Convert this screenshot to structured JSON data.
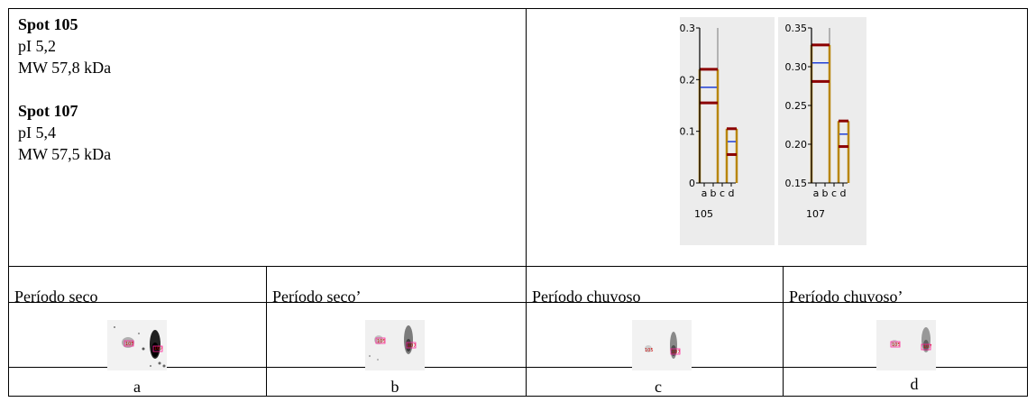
{
  "info": {
    "spot1": {
      "label": "Spot 105",
      "pi": "pI 5,2",
      "mw": "MW 57,8 kDa"
    },
    "spot2": {
      "label": "Spot 107",
      "pi": "pI 5,4",
      "mw": "MW 57,5 kDa"
    }
  },
  "periods": [
    "Período seco",
    "Período seco’",
    "Período chuvoso",
    "Período chuvoso’"
  ],
  "letters": [
    "a",
    "b",
    "c",
    "d"
  ],
  "gels": [
    {
      "spot_labels": [
        "105",
        "107"
      ]
    },
    {
      "spot_labels": [
        "105",
        "107"
      ]
    },
    {
      "spot_labels": [
        "105",
        "107"
      ]
    },
    {
      "spot_labels": [
        "105",
        "107"
      ]
    }
  ],
  "colors": {
    "bar": "#b8860b",
    "range": "#8b0000",
    "mean": "#1f3fd6",
    "panel": "#ececec"
  },
  "chart_data": [
    {
      "type": "bar",
      "title": "105",
      "categories": [
        "a",
        "b",
        "c",
        "d"
      ],
      "groups": [
        {
          "categories": [
            "a",
            "b"
          ],
          "max": 0.22,
          "min": 0.155,
          "mean": 0.185
        },
        {
          "categories": [
            "c",
            "d"
          ],
          "max": 0.105,
          "min": 0.055,
          "mean": 0.08
        }
      ],
      "yticks": [
        "0.3",
        "0.2",
        "0.1",
        "0"
      ],
      "ylim": [
        0,
        0.3
      ],
      "grid": false
    },
    {
      "type": "bar",
      "title": "107",
      "categories": [
        "a",
        "b",
        "c",
        "d"
      ],
      "groups": [
        {
          "categories": [
            "a",
            "b"
          ],
          "max": 0.328,
          "min": 0.281,
          "mean": 0.305
        },
        {
          "categories": [
            "c",
            "d"
          ],
          "max": 0.23,
          "min": 0.197,
          "mean": 0.213
        }
      ],
      "yticks": [
        "0.35",
        "0.30",
        "0.25",
        "0.20",
        "0.15"
      ],
      "ylim": [
        0.15,
        0.35
      ],
      "grid": false
    }
  ]
}
